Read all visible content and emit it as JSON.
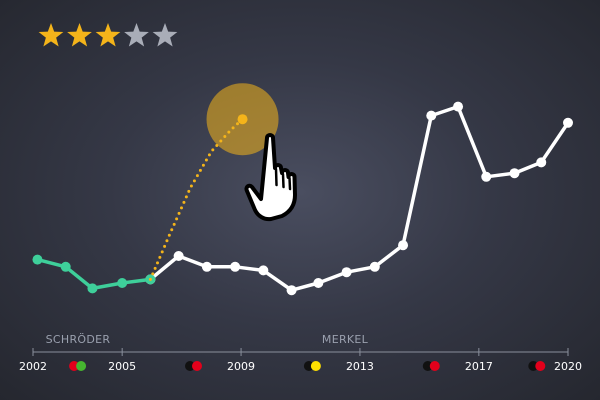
{
  "rating": {
    "value": 3,
    "max": 5,
    "filled_color": "#f4b41a",
    "empty_color": "#a9adb8"
  },
  "chart_data": {
    "type": "line",
    "title": "",
    "xlabel": "",
    "ylabel": "",
    "xlim": [
      2002,
      2020
    ],
    "ylim": [
      0,
      10
    ],
    "x_ticks": [
      "2002",
      "2005",
      "2009",
      "2013",
      "2017",
      "2020"
    ],
    "eras": [
      "SCHRÖDER",
      "MERKEL"
    ],
    "series": [
      {
        "color": "#3ecf9a",
        "x": [
          2002.15,
          2003.1,
          2004.0,
          2005.0,
          2005.95
        ],
        "y": [
          3.9,
          3.7,
          3.1,
          3.25,
          3.35
        ]
      },
      {
        "color": "#ffffff",
        "x": [
          2005.95,
          2006.9,
          2007.85,
          2008.8,
          2009.75,
          2010.7,
          2011.6,
          2012.55,
          2013.5,
          2014.45,
          2015.4,
          2016.3,
          2017.25,
          2018.2,
          2019.1,
          2020.0
        ],
        "y": [
          3.35,
          4.0,
          3.7,
          3.7,
          3.6,
          3.05,
          3.25,
          3.55,
          3.7,
          4.3,
          7.9,
          8.15,
          6.2,
          6.3,
          6.6,
          7.7
        ]
      },
      {
        "style": "dotted",
        "color": "#f4b41a",
        "x": [
          2005.95,
          2006.6,
          2007.3,
          2008.0,
          2008.65,
          2009.05
        ],
        "y": [
          3.35,
          4.6,
          5.9,
          6.9,
          7.5,
          7.8
        ]
      }
    ],
    "highlight": {
      "x": 2009.05,
      "y": 7.8,
      "color": "#f4b41a"
    },
    "coalition_markers": [
      {
        "x": 2003.5,
        "colors": [
          "#e3001b",
          "#46b530"
        ]
      },
      {
        "x": 2007.4,
        "colors": [
          "#111111",
          "#e3001b"
        ]
      },
      {
        "x": 2011.4,
        "colors": [
          "#111111",
          "#ffe000"
        ]
      },
      {
        "x": 2015.4,
        "colors": [
          "#111111",
          "#e3001b"
        ]
      },
      {
        "x": 2018.95,
        "colors": [
          "#111111",
          "#e3001b"
        ]
      }
    ],
    "grid": false,
    "legend": "none"
  },
  "cursor": {
    "icon": "pointing-hand-icon"
  }
}
